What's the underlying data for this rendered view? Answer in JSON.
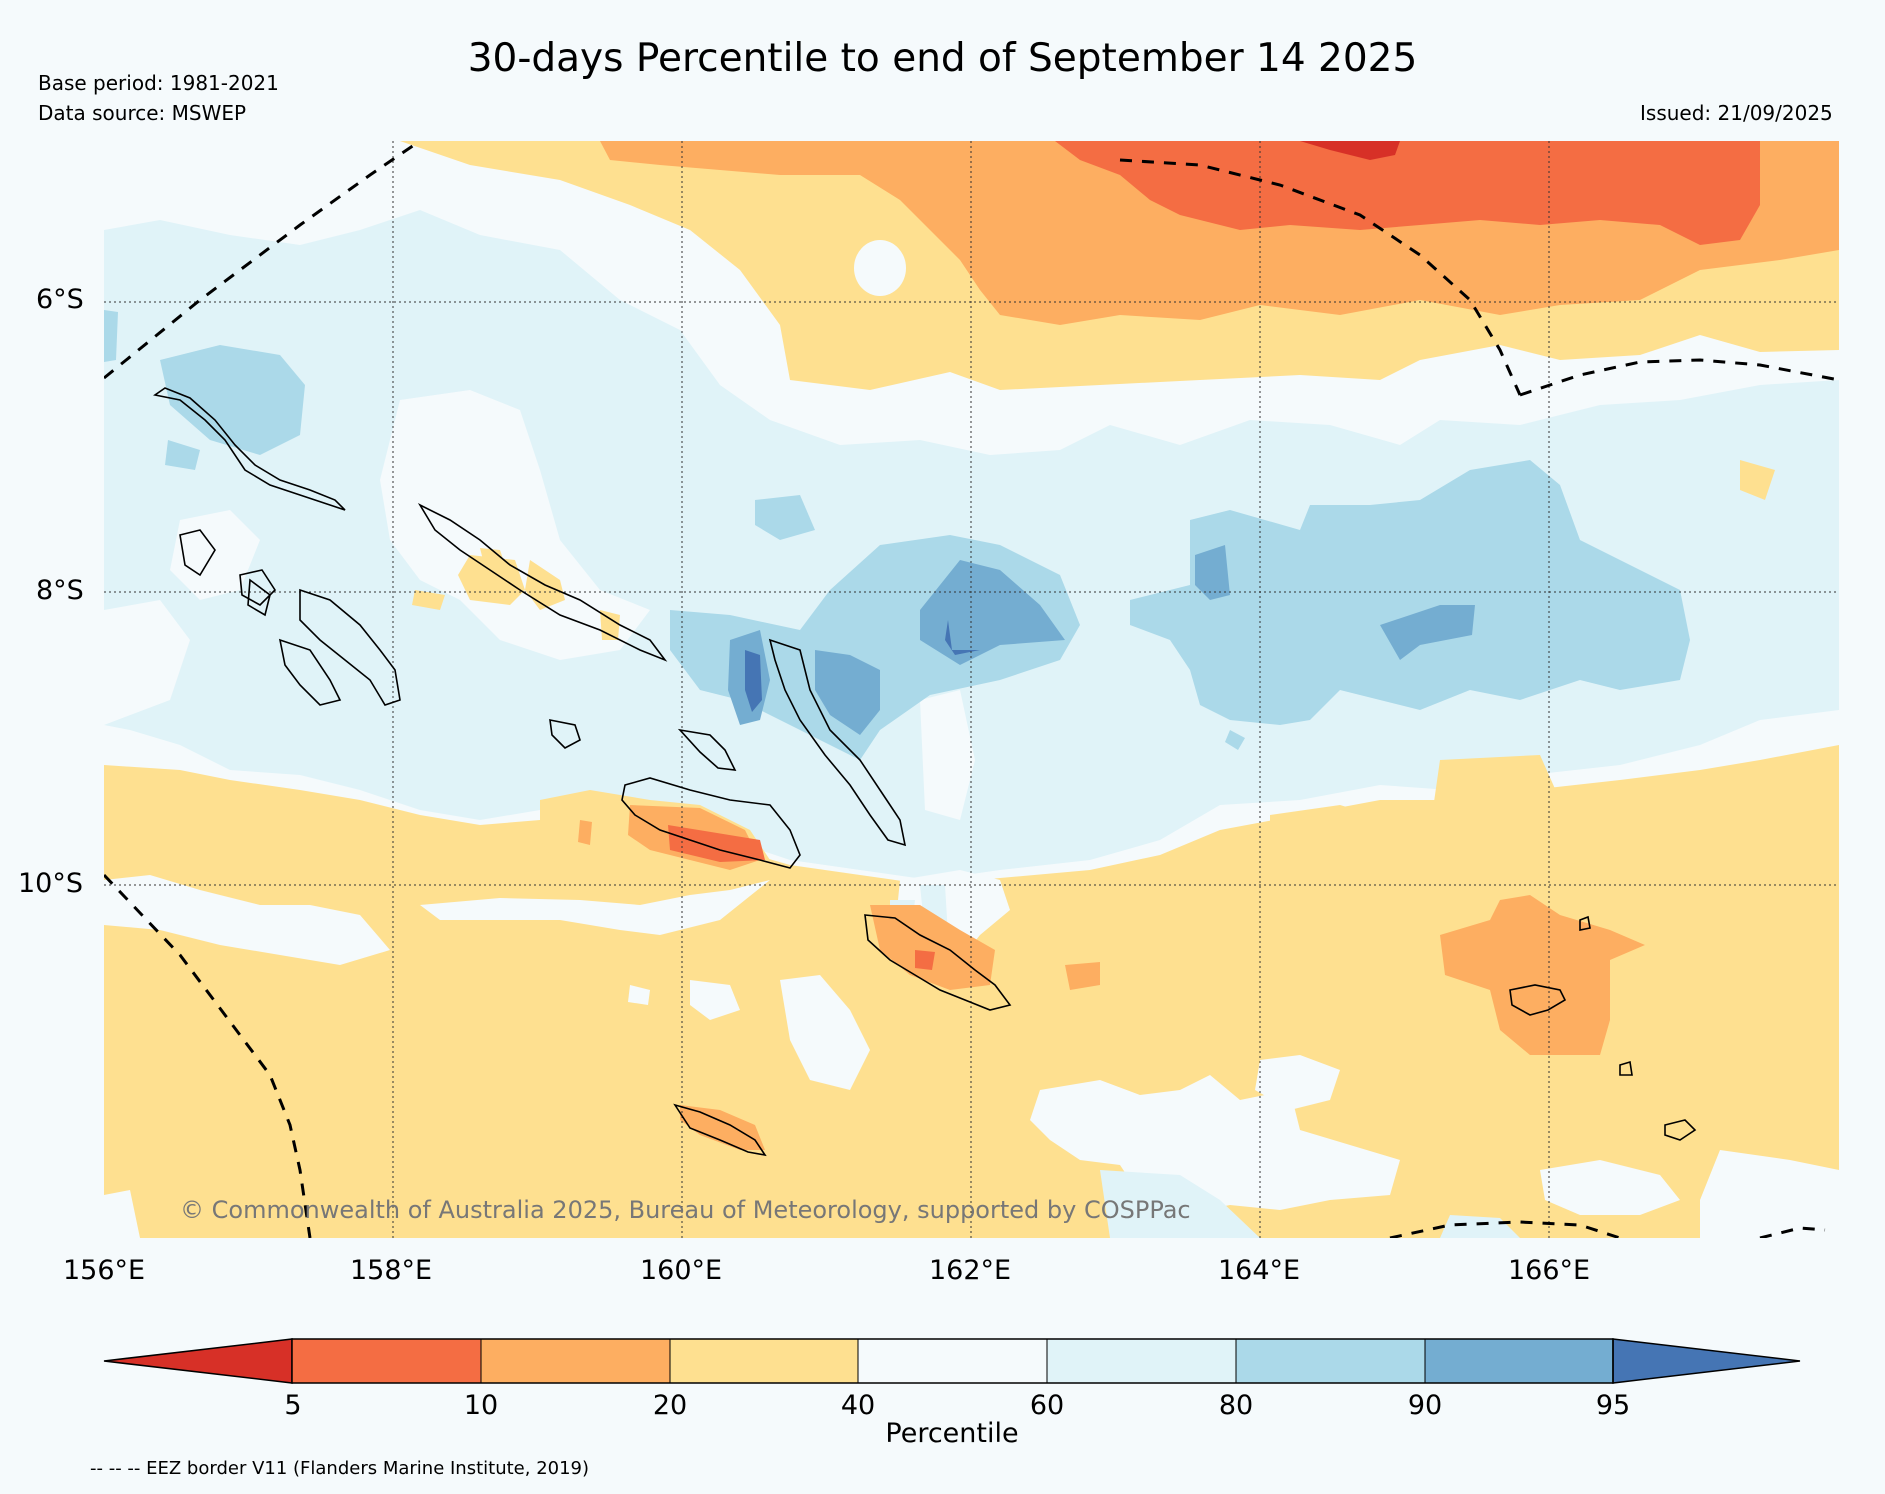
{
  "header": {
    "title": "30-days Percentile to end of September 14 2025",
    "base_period": "Base period: 1981-2021",
    "data_source": "Data source: MSWEP",
    "issued": "Issued: 21/09/2025"
  },
  "map": {
    "lat_labels": [
      "6°S",
      "8°S",
      "10°S"
    ],
    "lon_labels": [
      "156°E",
      "158°E",
      "160°E",
      "162°E",
      "164°E",
      "166°E"
    ],
    "copyright": "© Commonwealth of Australia 2025, Bureau of Meteorology, supported by COSPPac"
  },
  "legend": {
    "title": "Percentile",
    "ticks": [
      "5",
      "10",
      "20",
      "40",
      "60",
      "80",
      "90",
      "95"
    ],
    "colors": [
      "#d73027",
      "#f46d43",
      "#fdae61",
      "#fee090",
      "#f5fafc",
      "#e0f3f8",
      "#abd9e9",
      "#74add1",
      "#4575b4"
    ],
    "footnote": "-- -- -- EEZ border V11 (Flanders Marine Institute, 2019)"
  }
}
